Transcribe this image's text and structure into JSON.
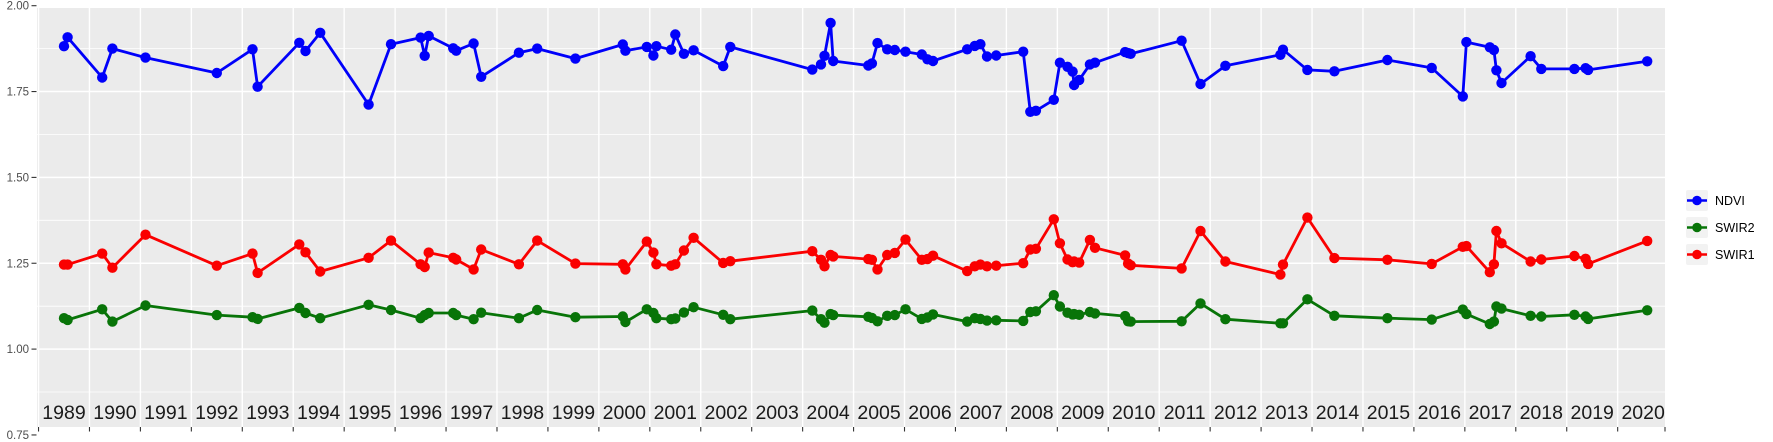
{
  "chart_data": {
    "type": "line",
    "title": "",
    "xlabel": "",
    "ylabel": "",
    "grid": "white major and minor gridlines on gray panel",
    "legend_position": "right-center",
    "ylim": [
      0.75,
      2.0
    ],
    "xlim": [
      1988.47,
      2020.43
    ],
    "y_ticks": [
      2.0,
      1.75,
      1.5,
      1.25,
      1.0,
      0.75
    ],
    "y_tick_labels": [
      "2.00",
      "1.75",
      "1.50",
      "1.25",
      "1.00",
      "0.75"
    ],
    "x_tick_labels": [
      "1989",
      "1990",
      "1991",
      "1992",
      "1993",
      "1994",
      "1995",
      "1996",
      "1997",
      "1998",
      "1999",
      "2000",
      "2001",
      "2002",
      "2003",
      "2004",
      "2005",
      "2006",
      "2007",
      "2008",
      "2009",
      "2010",
      "2011",
      "2012",
      "2013",
      "2014",
      "2015",
      "2016",
      "2017",
      "2018",
      "2019",
      "2020"
    ],
    "x": [
      1989.0,
      1989.07,
      1989.75,
      1989.95,
      1990.6,
      1992.0,
      1992.7,
      1992.8,
      1993.62,
      1993.74,
      1994.03,
      1994.98,
      1995.42,
      1996.0,
      1996.08,
      1996.16,
      1996.64,
      1996.7,
      1997.04,
      1997.19,
      1997.93,
      1998.29,
      1999.04,
      1999.97,
      2000.02,
      2000.44,
      2000.57,
      2000.63,
      2000.92,
      2001.0,
      2001.17,
      2001.36,
      2001.94,
      2002.08,
      2003.69,
      2003.86,
      2003.93,
      2004.05,
      2004.1,
      2004.79,
      2004.86,
      2004.97,
      2005.16,
      2005.31,
      2005.52,
      2005.84,
      2005.95,
      2006.06,
      2006.73,
      2006.88,
      2006.99,
      2007.12,
      2007.3,
      2007.83,
      2007.97,
      2008.08,
      2008.43,
      2008.55,
      2008.7,
      2008.8,
      2008.83,
      2008.93,
      2009.14,
      2009.24,
      2009.83,
      2009.89,
      2009.94,
      2010.94,
      2011.31,
      2011.8,
      2012.88,
      2012.93,
      2013.41,
      2013.94,
      2014.98,
      2015.85,
      2016.46,
      2016.53,
      2016.99,
      2017.07,
      2017.12,
      2017.22,
      2017.79,
      2018.0,
      2018.65,
      2018.87,
      2018.92,
      2020.08
    ],
    "series": [
      {
        "name": "NDVI",
        "color": "#0000FA",
        "values": [
          1.882,
          1.908,
          1.791,
          1.875,
          1.849,
          1.804,
          1.873,
          1.764,
          1.892,
          1.868,
          1.921,
          1.712,
          1.888,
          1.907,
          1.854,
          1.912,
          1.876,
          1.869,
          1.89,
          1.793,
          1.863,
          1.875,
          1.846,
          1.887,
          1.869,
          1.88,
          1.855,
          1.882,
          1.872,
          1.916,
          1.86,
          1.87,
          1.824,
          1.88,
          1.814,
          1.829,
          1.854,
          1.95,
          1.839,
          1.826,
          1.832,
          1.891,
          1.873,
          1.871,
          1.866,
          1.858,
          1.844,
          1.839,
          1.873,
          1.883,
          1.888,
          1.852,
          1.855,
          1.866,
          1.691,
          1.694,
          1.726,
          1.834,
          1.822,
          1.808,
          1.769,
          1.784,
          1.829,
          1.834,
          1.865,
          1.862,
          1.86,
          1.898,
          1.772,
          1.825,
          1.857,
          1.872,
          1.813,
          1.809,
          1.842,
          1.819,
          1.736,
          1.894,
          1.879,
          1.871,
          1.812,
          1.775,
          1.853,
          1.816,
          1.816,
          1.818,
          1.813,
          1.838
        ]
      },
      {
        "name": "SWIR2",
        "color": "#087408",
        "values": [
          1.09,
          1.085,
          1.116,
          1.08,
          1.127,
          1.099,
          1.093,
          1.088,
          1.12,
          1.105,
          1.09,
          1.129,
          1.114,
          1.09,
          1.099,
          1.105,
          1.105,
          1.099,
          1.087,
          1.106,
          1.09,
          1.114,
          1.093,
          1.095,
          1.079,
          1.116,
          1.105,
          1.09,
          1.087,
          1.089,
          1.107,
          1.122,
          1.1,
          1.087,
          1.112,
          1.087,
          1.077,
          1.102,
          1.099,
          1.094,
          1.091,
          1.081,
          1.097,
          1.099,
          1.116,
          1.088,
          1.092,
          1.101,
          1.08,
          1.09,
          1.088,
          1.083,
          1.084,
          1.082,
          1.108,
          1.11,
          1.157,
          1.124,
          1.106,
          1.101,
          1.102,
          1.1,
          1.108,
          1.104,
          1.096,
          1.081,
          1.08,
          1.081,
          1.133,
          1.087,
          1.075,
          1.075,
          1.145,
          1.097,
          1.09,
          1.086,
          1.115,
          1.102,
          1.073,
          1.08,
          1.124,
          1.118,
          1.097,
          1.095,
          1.1,
          1.095,
          1.088,
          1.113
        ]
      },
      {
        "name": "SWIR1",
        "color": "#FA0000",
        "values": [
          1.246,
          1.246,
          1.278,
          1.237,
          1.333,
          1.243,
          1.278,
          1.222,
          1.305,
          1.282,
          1.226,
          1.266,
          1.316,
          1.247,
          1.239,
          1.281,
          1.266,
          1.261,
          1.232,
          1.29,
          1.247,
          1.316,
          1.249,
          1.247,
          1.232,
          1.313,
          1.281,
          1.247,
          1.243,
          1.247,
          1.287,
          1.324,
          1.251,
          1.256,
          1.285,
          1.26,
          1.241,
          1.274,
          1.27,
          1.262,
          1.26,
          1.232,
          1.274,
          1.28,
          1.319,
          1.26,
          1.262,
          1.272,
          1.227,
          1.241,
          1.246,
          1.241,
          1.243,
          1.25,
          1.29,
          1.292,
          1.378,
          1.308,
          1.261,
          1.253,
          1.255,
          1.252,
          1.318,
          1.295,
          1.273,
          1.249,
          1.244,
          1.235,
          1.344,
          1.255,
          1.217,
          1.246,
          1.383,
          1.265,
          1.26,
          1.248,
          1.298,
          1.3,
          1.224,
          1.247,
          1.344,
          1.308,
          1.255,
          1.261,
          1.271,
          1.263,
          1.248,
          1.315
        ]
      }
    ]
  },
  "legend": {
    "items": [
      {
        "label": "NDVI",
        "color": "#0000FA"
      },
      {
        "label": "SWIR2",
        "color": "#087408"
      },
      {
        "label": "SWIR1",
        "color": "#FA0000"
      }
    ]
  },
  "styles": {
    "panel_bg": "#EBEBEB",
    "grid_color": "#FFFFFF",
    "legend_key_bg": "#F2F2F2",
    "y_axis_text_color": "#4D4D4D",
    "x_axis_text_color": "#1A1A1A",
    "tick_color": "#333333"
  }
}
